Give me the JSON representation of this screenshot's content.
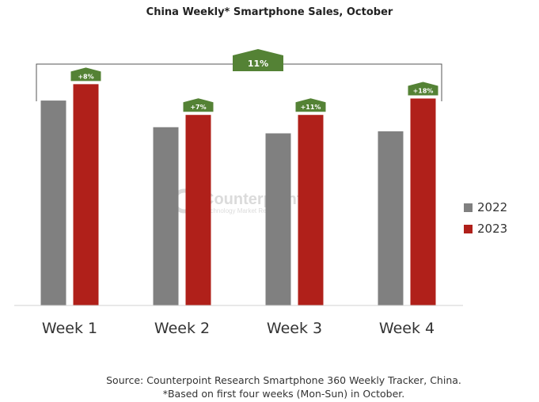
{
  "chart_data": {
    "type": "bar",
    "title": "China Weekly* Smartphone Sales, October",
    "categories": [
      "Week 1",
      "Week 2",
      "Week 3",
      "Week 4"
    ],
    "series": [
      {
        "name": "2022",
        "values": [
          100,
          87,
          84,
          85
        ]
      },
      {
        "name": "2023",
        "values": [
          108,
          93,
          93,
          101
        ]
      }
    ],
    "growth_labels": [
      "+8%",
      "+7%",
      "+11%",
      "+18%"
    ],
    "total_growth_label": "11%",
    "ylim": [
      0,
      112
    ],
    "grid": false,
    "legend_position": "right",
    "colors": {
      "2022": "#808080",
      "2023": "#b0201a",
      "annotation": "#548235"
    }
  },
  "watermark": {
    "brand": "Counterpoint",
    "tagline": "Technology Market Research"
  },
  "source": "Source: Counterpoint Research Smartphone 360 Weekly Tracker, China.",
  "note": "*Based on first four weeks (Mon-Sun) in October."
}
